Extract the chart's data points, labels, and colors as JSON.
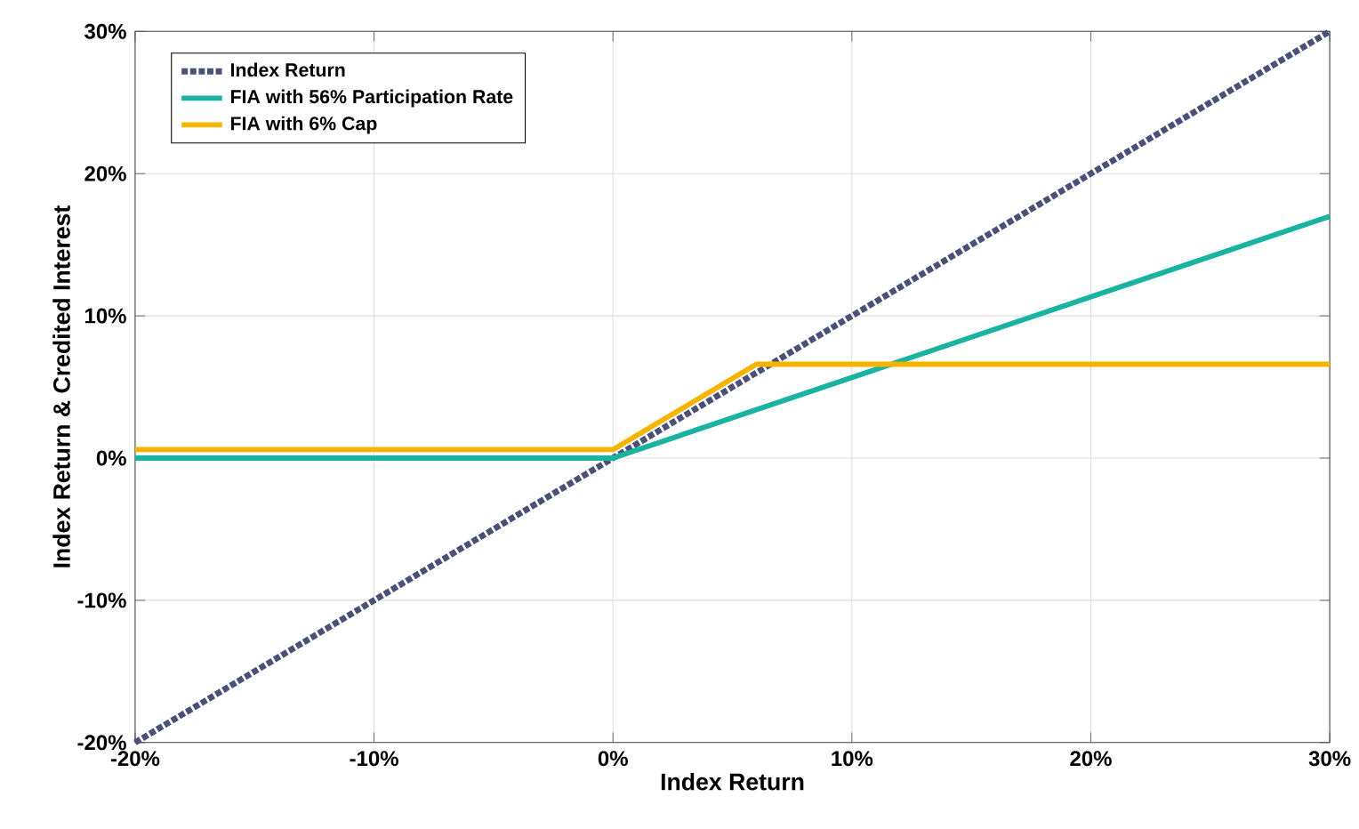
{
  "chart_data": {
    "type": "line",
    "xlabel": "Index Return",
    "ylabel": "Index Return & Credited Interest",
    "series": [
      {
        "name": "Index Return",
        "color": "#4a5078",
        "line_style": "dotted",
        "x": [
          -20,
          30
        ],
        "values": [
          -20,
          30
        ]
      },
      {
        "name": "FIA with 56% Participation Rate",
        "color": "#1ab2a0",
        "line_style": "solid",
        "x": [
          -20,
          0,
          30
        ],
        "values": [
          0,
          0,
          17
        ]
      },
      {
        "name": "FIA with 6% Cap",
        "color": "#f5b400",
        "line_style": "solid",
        "x": [
          -20,
          0,
          6,
          30
        ],
        "values": [
          0.6,
          0.6,
          6.6,
          6.6
        ]
      }
    ],
    "xlim": [
      -20,
      30
    ],
    "ylim": [
      -20,
      30
    ],
    "xticks": [
      {
        "value": -20,
        "label": "-20%"
      },
      {
        "value": -10,
        "label": "-10%"
      },
      {
        "value": 0,
        "label": "0%"
      },
      {
        "value": 10,
        "label": "10%"
      },
      {
        "value": 20,
        "label": "20%"
      },
      {
        "value": 30,
        "label": "30%"
      }
    ],
    "yticks": [
      {
        "value": -20,
        "label": "-20%"
      },
      {
        "value": -10,
        "label": "-10%"
      },
      {
        "value": 0,
        "label": "0%"
      },
      {
        "value": 10,
        "label": "10%"
      },
      {
        "value": 20,
        "label": "20%"
      },
      {
        "value": 30,
        "label": "30%"
      }
    ],
    "grid": true,
    "legend": "top left",
    "marker": "none"
  }
}
